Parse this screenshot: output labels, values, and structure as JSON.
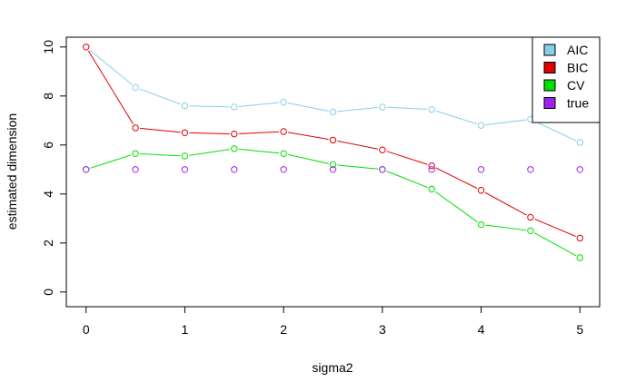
{
  "chart_data": {
    "type": "line",
    "title": "",
    "xlabel": "sigma2",
    "ylabel": "estimated dimension",
    "xlim": [
      -0.2,
      5.2
    ],
    "ylim": [
      -0.6,
      10.4
    ],
    "x_ticks": [
      0,
      1,
      2,
      3,
      4,
      5
    ],
    "y_ticks": [
      0,
      2,
      4,
      6,
      8,
      10
    ],
    "x": [
      0,
      0.5,
      1,
      1.5,
      2,
      2.5,
      3,
      3.5,
      4,
      4.5,
      5
    ],
    "grid": false,
    "legend_position": "top-right",
    "series": [
      {
        "name": "AIC",
        "color": "#87ceeb",
        "line": true,
        "values": [
          10,
          8.35,
          7.6,
          7.55,
          7.75,
          7.35,
          7.55,
          7.45,
          6.8,
          7.05,
          6.1
        ]
      },
      {
        "name": "BIC",
        "color": "#e00000",
        "line": true,
        "values": [
          10,
          6.7,
          6.5,
          6.45,
          6.55,
          6.2,
          5.8,
          5.15,
          4.15,
          3.05,
          2.2
        ]
      },
      {
        "name": "CV",
        "color": "#00e000",
        "line": true,
        "values": [
          5,
          5.65,
          5.55,
          5.85,
          5.65,
          5.2,
          5.0,
          4.2,
          2.75,
          2.5,
          1.4
        ]
      },
      {
        "name": "true",
        "color": "#a020f0",
        "line": false,
        "values": [
          5,
          5,
          5,
          5,
          5,
          5,
          5,
          5,
          5,
          5,
          5
        ]
      }
    ]
  }
}
